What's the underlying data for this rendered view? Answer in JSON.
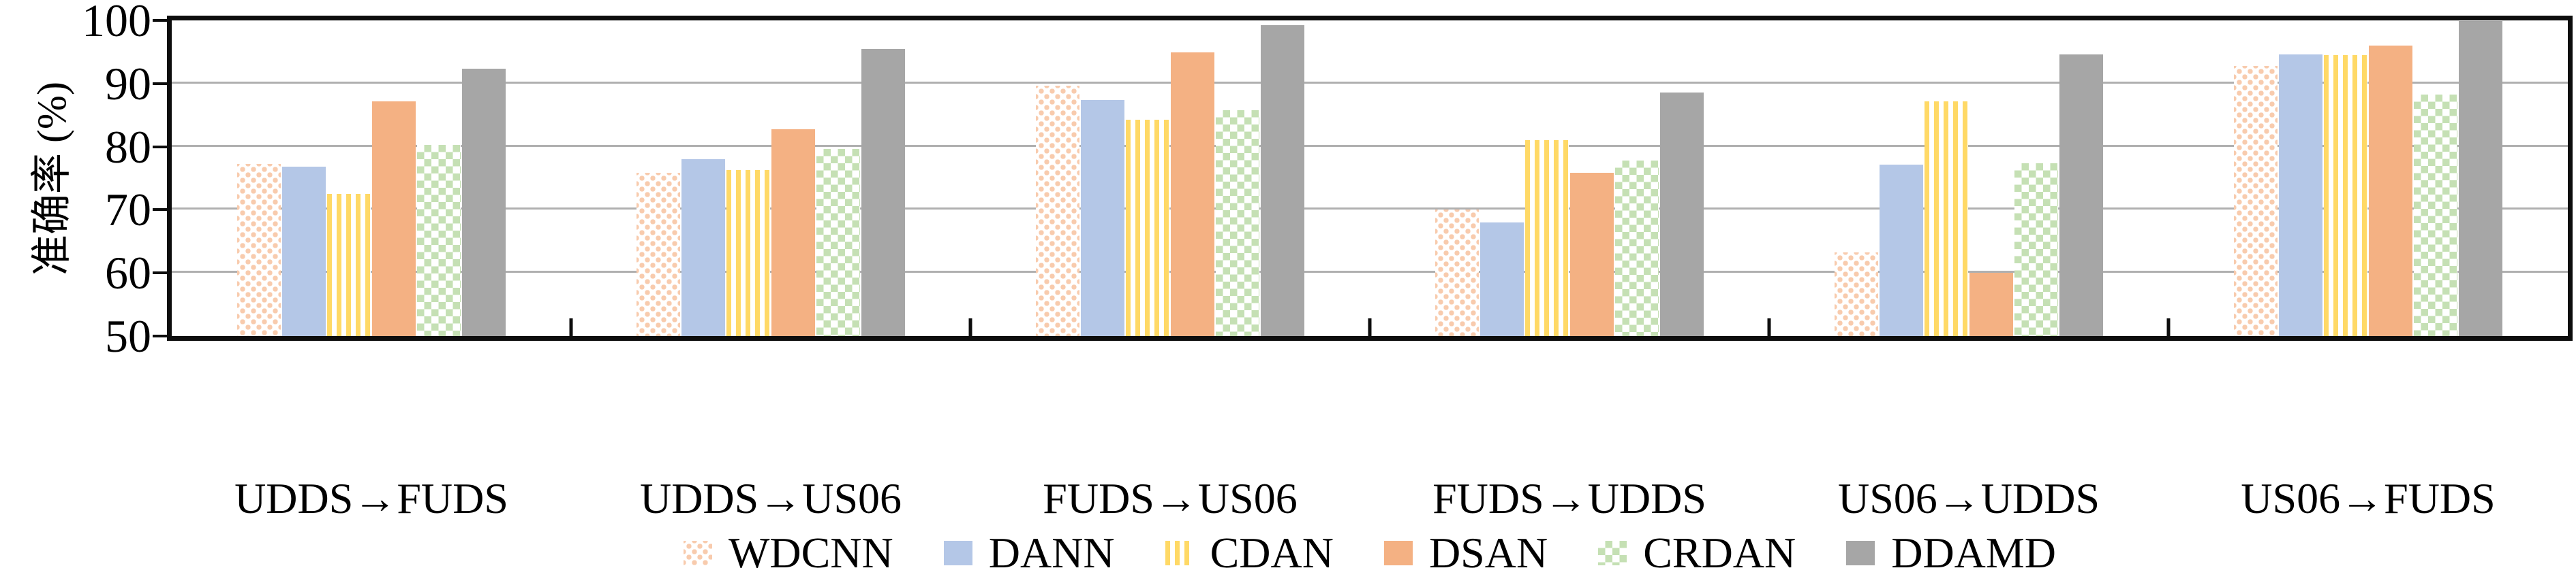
{
  "chart_data": {
    "type": "bar",
    "title": "",
    "ylabel": "准确率 (%)",
    "xlabel": "",
    "ylim": [
      50,
      100
    ],
    "yticks": [
      50,
      60,
      70,
      80,
      90,
      100
    ],
    "grid": "horizontal",
    "gridline_color": "#b0b0b0",
    "axis_color": "#0d0d0d",
    "legend_position": "bottom",
    "categories": [
      "UDDS→FUDS",
      "UDDS→US06",
      "FUDS→US06",
      "FUDS→UDDS",
      "US06→UDDS",
      "US06→FUDS"
    ],
    "series": [
      {
        "name": "WDCNN",
        "pattern": "dots",
        "color": "#F8CBAD",
        "values": [
          77.3,
          75.9,
          89.7,
          70.0,
          63.3,
          92.8
        ]
      },
      {
        "name": "DANN",
        "pattern": "solid",
        "color": "#B4C7E7",
        "values": [
          76.8,
          78.0,
          87.4,
          68.0,
          77.2,
          94.6
        ]
      },
      {
        "name": "CDAN",
        "pattern": "vstripes",
        "color": "#FFD966",
        "values": [
          72.5,
          76.3,
          84.3,
          81.0,
          87.2,
          94.5
        ]
      },
      {
        "name": "DSAN",
        "pattern": "solid",
        "color": "#F4B183",
        "values": [
          87.2,
          82.8,
          94.9,
          75.9,
          60.0,
          96.0
        ]
      },
      {
        "name": "CRDAN",
        "pattern": "checker",
        "color": "#C5E0B4",
        "values": [
          80.3,
          79.6,
          85.8,
          77.8,
          77.4,
          88.3
        ]
      },
      {
        "name": "DDAMD",
        "pattern": "solid",
        "color": "#A6A6A6",
        "values": [
          92.3,
          95.5,
          99.2,
          88.6,
          94.6,
          99.9
        ]
      }
    ]
  }
}
